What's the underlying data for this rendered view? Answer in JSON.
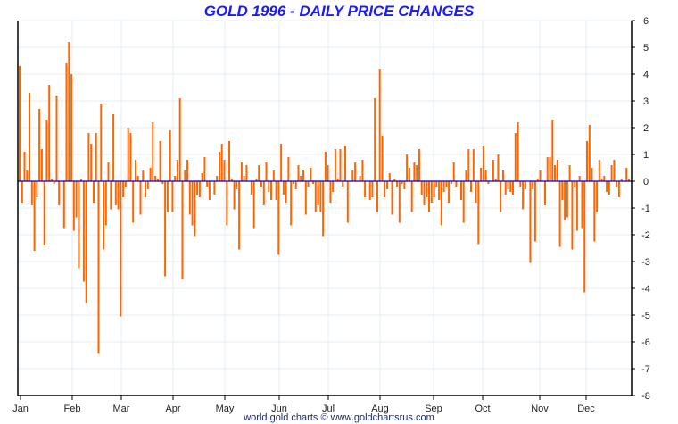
{
  "chart_data": {
    "type": "bar",
    "title": "GOLD 1996 - DAILY PRICE CHANGES",
    "xlabel": "",
    "ylabel": "",
    "ylim": [
      -8,
      6
    ],
    "yticks": [
      "6",
      "5",
      "4",
      "3",
      "2",
      "1",
      "0",
      "-1",
      "-2",
      "-3",
      "-4",
      "-5",
      "-6",
      "-7",
      "-8"
    ],
    "xticks": [
      "Jan",
      "Feb",
      "Mar",
      "Apr",
      "May",
      "Jun",
      "Jul",
      "Aug",
      "Sep",
      "Oct",
      "Nov",
      "Dec"
    ],
    "grid": true,
    "axis_side": "right",
    "bar_color": "#ff6600",
    "zero_line_color": "#0000cc",
    "values": [
      4.3,
      -0.8,
      1.1,
      0.4,
      3.3,
      -0.9,
      -2.6,
      -0.6,
      2.7,
      1.2,
      -2.4,
      2.3,
      3.6,
      0.1,
      -0.1,
      3.2,
      -0.9,
      0,
      -1.75,
      4.4,
      5.2,
      4.0,
      -1.85,
      -1.35,
      -3.25,
      0.1,
      -3.75,
      -4.55,
      1.8,
      1.4,
      -0.8,
      1.8,
      -6.45,
      2.9,
      -2.55,
      -1.65,
      0.7,
      -1.05,
      2.5,
      -0.9,
      -1.05,
      -5.05,
      -0.6,
      -0.2,
      2.0,
      1.8,
      -1.55,
      0.8,
      0.2,
      -1.25,
      0.4,
      -0.6,
      -0.3,
      0.5,
      2.2,
      0.2,
      0.1,
      1.5,
      -0.1,
      -3.55,
      -1.15,
      1.9,
      -1.15,
      0.2,
      0.8,
      3.1,
      -3.65,
      0.4,
      0.8,
      -1.25,
      -1.65,
      -2.05,
      -0.5,
      -0.6,
      0.3,
      0.9,
      -0.2,
      -0.7,
      0,
      -0.5,
      0.2,
      1.1,
      1.4,
      0.8,
      -1.65,
      1.5,
      0.1,
      -1.05,
      -0.3,
      -2.55,
      0.7,
      0.2,
      0.6,
      0,
      -0.5,
      -1.75,
      0.1,
      0.6,
      -0.2,
      -0.9,
      0.7,
      -0.4,
      -0.7,
      0.4,
      -0.7,
      -2.75,
      1.4,
      -0.5,
      -0.8,
      0.9,
      -1.65,
      -0.1,
      -0.3,
      0.6,
      0.2,
      0.4,
      -1.25,
      -0.2,
      0.5,
      -0.1,
      -1.15,
      -0.9,
      -1.15,
      -2.05,
      1.1,
      0.6,
      -0.8,
      -0.4,
      1.2,
      0.1,
      1.2,
      -0.2,
      1.3,
      -1.55,
      0,
      0.4,
      0.7,
      0,
      0.2,
      0.8,
      -0.6,
      0,
      -0.7,
      -0.6,
      3.1,
      -1.15,
      4.2,
      1.7,
      -0.6,
      -0.3,
      0.3,
      -1.25,
      0.1,
      -0.2,
      -1.55,
      -0.1,
      -0.3,
      1.0,
      0.5,
      -1.15,
      0.7,
      0.6,
      1.2,
      -0.5,
      -0.9,
      -0.6,
      -1.15,
      -0.8,
      -0.6,
      -0.2,
      -0.7,
      -1.65,
      -0.4,
      -0.2,
      -0.8,
      -0.1,
      0.7,
      -0.2,
      0,
      -0.7,
      -1.55,
      0.4,
      1.2,
      -0.4,
      1.2,
      -0.8,
      -2.35,
      0.5,
      1.3,
      0.4,
      -0.1,
      0,
      0.8,
      0.1,
      1.0,
      -1.15,
      0.4,
      -0.5,
      -0.3,
      -0.4,
      -0.5,
      1.8,
      2.2,
      -0.2,
      -1.05,
      -0.3,
      0,
      -3.05,
      -0.3,
      -2.25,
      0.1,
      0.4,
      0,
      -0.9,
      0.9,
      0.9,
      2.3,
      0.6,
      0.8,
      -2.45,
      -0.7,
      -1.45,
      -1.35,
      0.6,
      -2.55,
      -0.2,
      -1.85,
      0.2,
      -1.75,
      -4.15,
      1.5,
      2.1,
      0.5,
      -2.25,
      -1.15,
      0.8,
      0.1,
      0.2,
      -0.4,
      -0.5,
      0.6,
      0.8,
      -0.2,
      -0.6,
      0.1,
      0,
      0.5,
      0.1
    ]
  },
  "footer": "world gold charts © www.goldchartsrus.com"
}
